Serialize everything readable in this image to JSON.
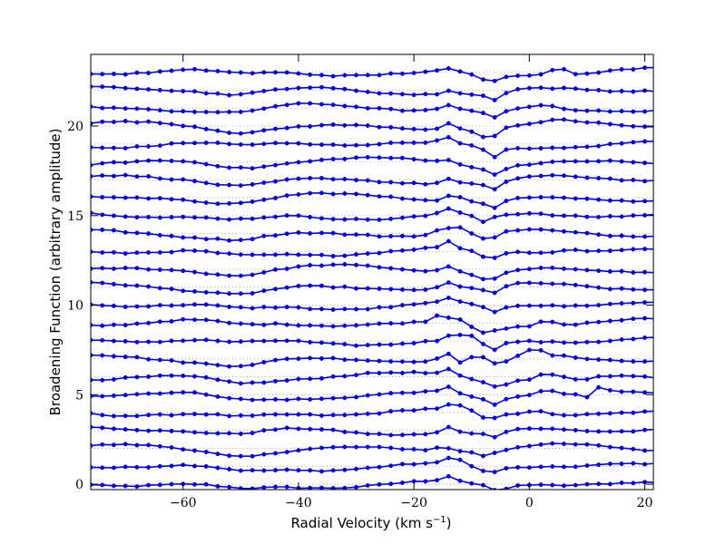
{
  "chart_data": {
    "type": "line",
    "title": "",
    "xlabel": "Radial Velocity (km s",
    "xlabel_sup": "−1",
    "xlabel_end": ")",
    "ylabel": "Broadening Function (arbitrary amplitude)",
    "xlim": [
      -76,
      21.5
    ],
    "ylim": [
      -0.3,
      24
    ],
    "xticks": [
      -60,
      -40,
      -20,
      0,
      20
    ],
    "xtick_labels": [
      "−60",
      "−40",
      "−20",
      "0",
      "20"
    ],
    "yticks": [
      0,
      5,
      10,
      15,
      20
    ],
    "ytick_labels": [
      "0",
      "5",
      "10",
      "15",
      "20"
    ],
    "grid": false,
    "baseline_style": "dotted-gray",
    "line_color": "#0000ff",
    "marker_color": "#0000ff",
    "marker": "circle",
    "x_step": 2,
    "offset_step": 1,
    "series_count": 24,
    "series": [
      {
        "offset": 0,
        "anomalies": [
          [
            -14,
            0.25
          ],
          [
            -5,
            -0.3
          ]
        ]
      },
      {
        "offset": 1,
        "anomalies": [
          [
            -13,
            0.45
          ],
          [
            -7,
            -0.2
          ]
        ]
      },
      {
        "offset": 2,
        "anomalies": [
          [
            -15,
            0.2
          ],
          [
            -8,
            -0.15
          ]
        ]
      },
      {
        "offset": 3,
        "anomalies": [
          [
            -14,
            0.3
          ],
          [
            -6,
            -0.2
          ]
        ]
      },
      {
        "offset": 4,
        "anomalies": [
          [
            -13,
            0.3
          ],
          [
            -7,
            -0.35
          ],
          [
            1,
            0.2
          ]
        ]
      },
      {
        "offset": 5,
        "anomalies": [
          [
            -14,
            0.3
          ],
          [
            -6,
            -0.35
          ],
          [
            3,
            0.35
          ],
          [
            10,
            -0.3
          ],
          [
            12,
            0.3
          ]
        ]
      },
      {
        "offset": 6,
        "anomalies": [
          [
            -14,
            0.3
          ],
          [
            -5,
            -0.3
          ],
          [
            3,
            0.3
          ],
          [
            9,
            -0.25
          ]
        ]
      },
      {
        "offset": 7,
        "anomalies": [
          [
            -14,
            0.4
          ],
          [
            -12,
            -0.25
          ],
          [
            -9,
            0.25
          ],
          [
            -5,
            -0.3
          ],
          [
            1,
            0.35
          ]
        ]
      },
      {
        "offset": 8,
        "anomalies": [
          [
            -13,
            0.45
          ],
          [
            -10,
            0.3
          ],
          [
            -6,
            -0.3
          ]
        ]
      },
      {
        "offset": 9,
        "anomalies": [
          [
            -16,
            0.35
          ],
          [
            -13,
            0.4
          ],
          [
            -8,
            -0.2
          ],
          [
            3,
            0.35
          ]
        ]
      },
      {
        "offset": 10,
        "anomalies": [
          [
            -14,
            0.3
          ],
          [
            -6,
            -0.25
          ]
        ]
      },
      {
        "offset": 11,
        "anomalies": [
          [
            -14,
            0.3
          ],
          [
            -6,
            -0.25
          ]
        ]
      },
      {
        "offset": 12,
        "anomalies": [
          [
            -14,
            0.35
          ],
          [
            -7,
            -0.35
          ]
        ]
      },
      {
        "offset": 13,
        "anomalies": [
          [
            -14,
            0.35
          ],
          [
            -7,
            -0.3
          ],
          [
            7,
            0.2
          ]
        ]
      },
      {
        "offset": 14,
        "anomalies": [
          [
            -15,
            0.35
          ],
          [
            -12,
            0.3
          ],
          [
            -7,
            -0.3
          ]
        ]
      },
      {
        "offset": 15,
        "anomalies": [
          [
            -14,
            0.3
          ],
          [
            -8,
            -0.3
          ]
        ]
      },
      {
        "offset": 16,
        "anomalies": [
          [
            -13,
            0.35
          ],
          [
            -6,
            -0.35
          ]
        ]
      },
      {
        "offset": 17,
        "anomalies": [
          [
            -14,
            0.25
          ],
          [
            -6,
            -0.3
          ]
        ]
      },
      {
        "offset": 18,
        "anomalies": [
          [
            -14,
            0.2
          ],
          [
            -6,
            -0.3
          ]
        ]
      },
      {
        "offset": 19,
        "anomalies": [
          [
            -14,
            0.3
          ],
          [
            -6,
            -0.45
          ]
        ]
      },
      {
        "offset": 20,
        "anomalies": [
          [
            -14,
            0.35
          ],
          [
            -7,
            -0.5
          ],
          [
            5,
            0.2
          ]
        ]
      },
      {
        "offset": 21,
        "anomalies": [
          [
            -14,
            0.3
          ],
          [
            -6,
            -0.3
          ],
          [
            3,
            0.25
          ]
        ]
      },
      {
        "offset": 22,
        "anomalies": [
          [
            -14,
            0.2
          ],
          [
            -6,
            -0.3
          ]
        ]
      },
      {
        "offset": 23,
        "anomalies": [
          [
            -14,
            0.15
          ],
          [
            -7,
            -0.3
          ],
          [
            5,
            0.45
          ]
        ]
      }
    ]
  }
}
